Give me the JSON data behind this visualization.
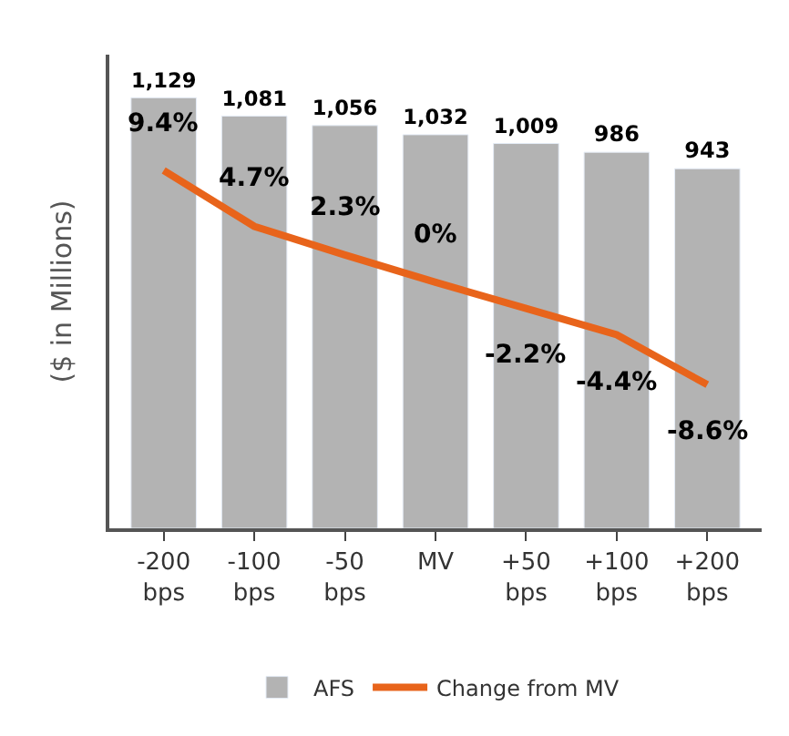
{
  "chart_data": {
    "type": "bar",
    "ylabel": "($ in Millions)",
    "categories": [
      "-200\nbps",
      "-100\nbps",
      "-50\nbps",
      "MV",
      "+50\nbps",
      "+100\nbps",
      "+200\nbps"
    ],
    "series": [
      {
        "name": "AFS",
        "color": "#b3b3b3",
        "values": [
          1129,
          1081,
          1056,
          1032,
          1009,
          986,
          943
        ],
        "value_labels": [
          "1,129",
          "1,081",
          "1,056",
          "1,032",
          "1,009",
          "986",
          "943"
        ]
      },
      {
        "name": "Change from MV",
        "type": "line",
        "axis": "y2",
        "color": "#e8641b",
        "values": [
          9.4,
          4.7,
          2.3,
          0,
          -2.2,
          -4.4,
          -8.6
        ],
        "value_labels": [
          "9.4%",
          "4.7%",
          "2.3%",
          "0%",
          "-2.2%",
          "-4.4%",
          "-8.6%"
        ]
      }
    ],
    "legend": "bottom",
    "marker": "none",
    "line_style": "solid"
  }
}
